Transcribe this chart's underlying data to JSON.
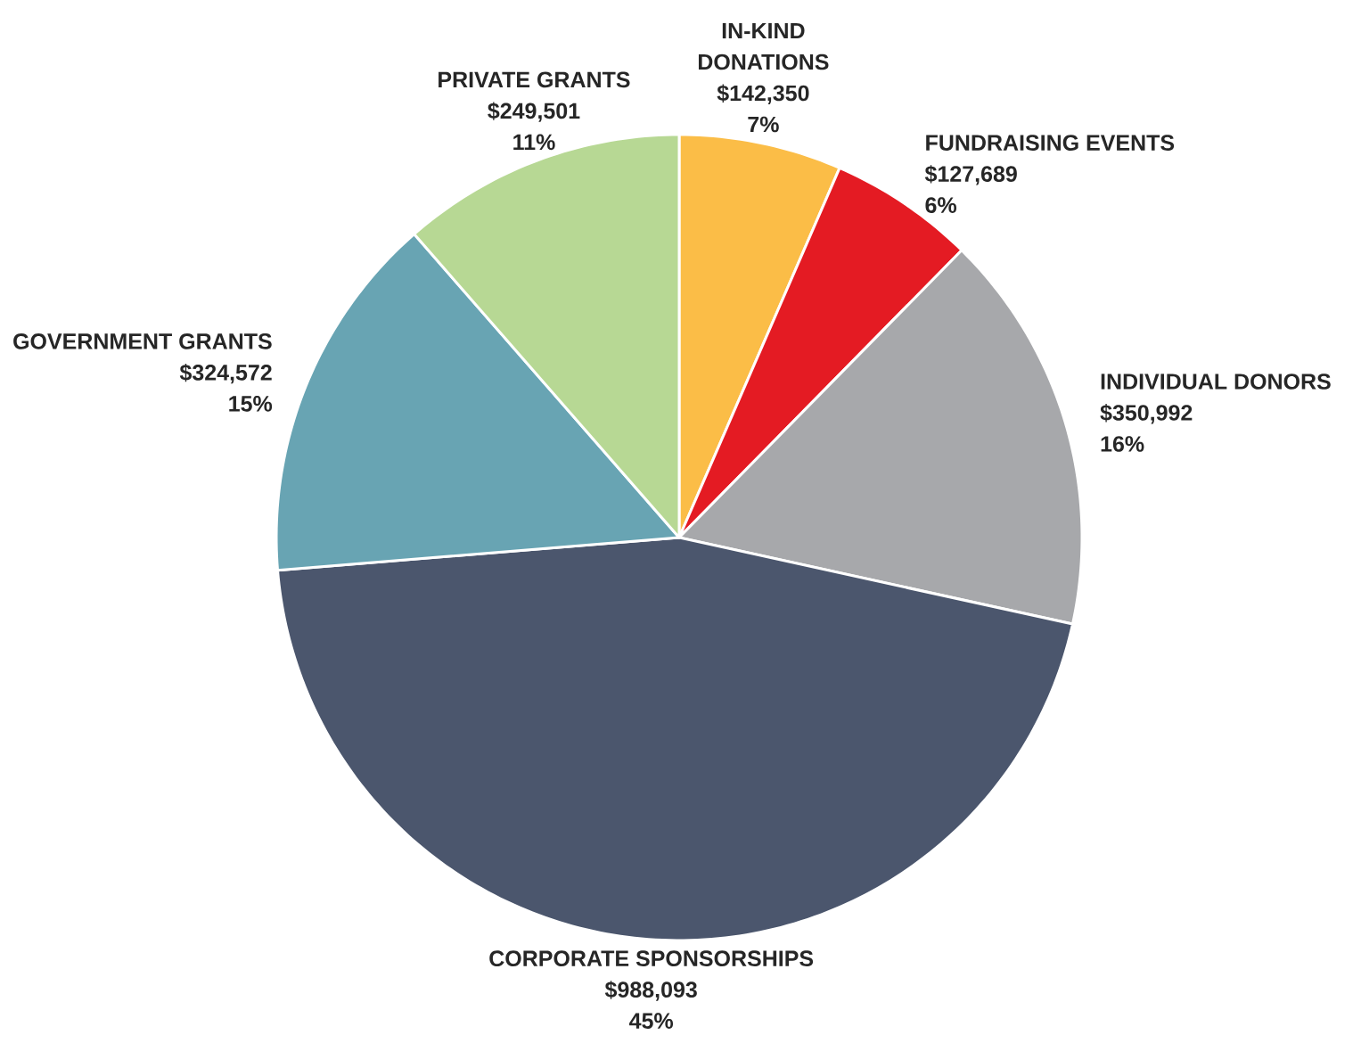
{
  "chart_data": {
    "type": "pie",
    "categories": [
      "IN-KIND DONATIONS",
      "FUNDRAISING EVENTS",
      "INDIVIDUAL DONORS",
      "CORPORATE SPONSORSHIPS",
      "GOVERNMENT GRANTS",
      "PRIVATE GRANTS"
    ],
    "values": [
      142350,
      127689,
      350992,
      988093,
      324572,
      249501
    ],
    "value_labels": [
      "$142,350",
      "$127,689",
      "$350,992",
      "$988,093",
      "$324,572",
      "$249,501"
    ],
    "annotations": [
      "7%",
      "6%",
      "16%",
      "45%",
      "15%",
      "11%"
    ],
    "colors": [
      "#fbbd47",
      "#e41b23",
      "#a7a8ab",
      "#4b566d",
      "#68a4b3",
      "#b7d894"
    ]
  }
}
